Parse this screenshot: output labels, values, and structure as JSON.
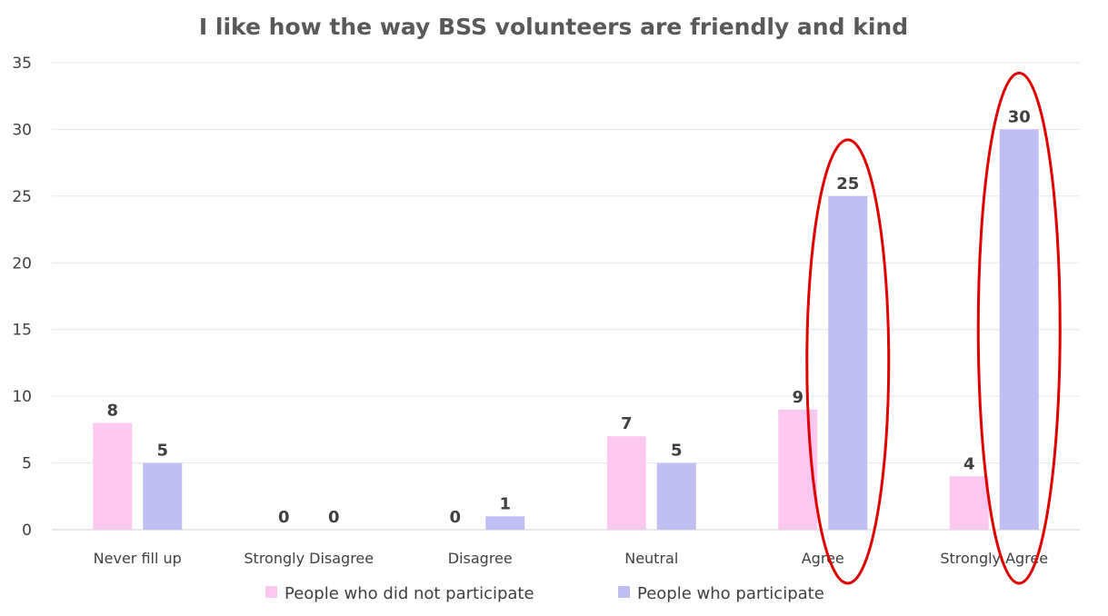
{
  "chart_data": {
    "type": "bar",
    "title": "I like how the way BSS volunteers are friendly and kind",
    "xlabel": "",
    "ylabel": "",
    "categories": [
      "Never fill up",
      "Strongly Disagree",
      "Disagree",
      "Neutral",
      "Agree",
      "Strongly Agree"
    ],
    "series": [
      {
        "name": "People who did not participate",
        "values": [
          8,
          0,
          0,
          7,
          9,
          4
        ],
        "color": "#FCC8F2"
      },
      {
        "name": "People who participate",
        "values": [
          5,
          0,
          1,
          5,
          25,
          30
        ],
        "color": "#BFBFF3"
      }
    ],
    "ylim": [
      0,
      35
    ],
    "yticks": [
      0,
      5,
      10,
      15,
      20,
      25,
      30,
      35
    ],
    "grid": true,
    "legend": "bottom",
    "annotations": [
      {
        "type": "ellipse",
        "category": "Agree",
        "color": "#E00000"
      },
      {
        "type": "ellipse",
        "category": "Strongly Agree",
        "color": "#E00000"
      }
    ]
  }
}
